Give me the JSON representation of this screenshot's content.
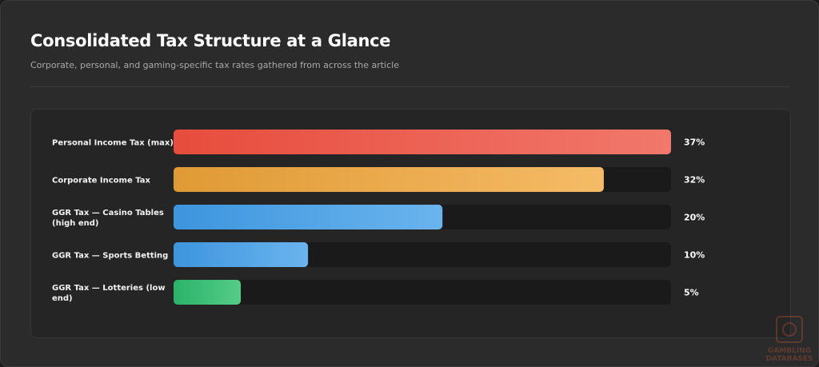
{
  "chart_data": {
    "type": "bar",
    "orientation": "horizontal",
    "title": "Consolidated Tax Structure at a Glance",
    "subtitle": "Corporate, personal, and gaming-specific tax rates gathered from across the article",
    "categories": [
      [
        "Personal Income Tax (max)"
      ],
      [
        "Corporate Income Tax"
      ],
      [
        "GGR Tax — Casino Tables",
        "(high end)"
      ],
      [
        "GGR Tax — Sports Betting"
      ],
      [
        "GGR Tax — Lotteries (low",
        "end)"
      ]
    ],
    "values": [
      37,
      32,
      20,
      10,
      5
    ],
    "value_labels": [
      "37%",
      "32%",
      "20%",
      "10%",
      "5%"
    ],
    "xlim": [
      0,
      37
    ],
    "grid": false,
    "colors": [
      [
        "#e74c3c",
        "#f1786c"
      ],
      [
        "#e09a35",
        "#f5bb66"
      ],
      [
        "#3d95dd",
        "#6ab4ee"
      ],
      [
        "#3d95dd",
        "#6ab4ee"
      ],
      [
        "#2bb36a",
        "#55cc88"
      ]
    ],
    "track_color": "#1a1a1a"
  },
  "watermark": {
    "line1": "GAMBLING",
    "line2": "DATABASES"
  }
}
